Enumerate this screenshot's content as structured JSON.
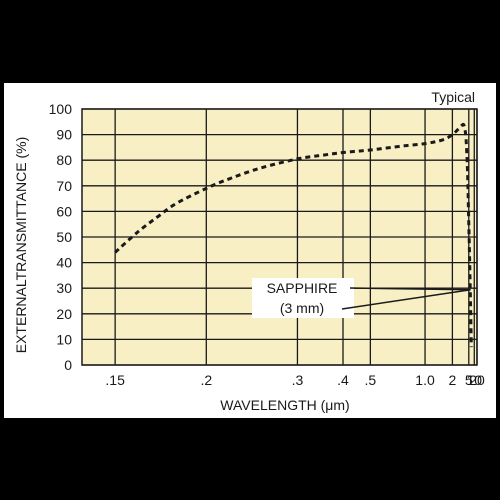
{
  "colors": {
    "page_background": "#000000",
    "panel_background": "#ffffff",
    "plot_background": "#f8efc4",
    "grid_line": "#1a1a1a",
    "curve": "#1a1a1a"
  },
  "chart_data": {
    "type": "line",
    "title": "",
    "corner_label": "Typical",
    "xlabel": "WAVELENGTH (μm)",
    "ylabel": "EXTERNALTRANSMITTANCE (%)",
    "x_scale": "reciprocal",
    "xlim": [
      0.1375,
      20
    ],
    "ylim": [
      0,
      100
    ],
    "grid": true,
    "x_ticks": [
      {
        "value": 0.15,
        "label": ".15"
      },
      {
        "value": 0.2,
        "label": ".2"
      },
      {
        "value": 0.3,
        "label": ".3"
      },
      {
        "value": 0.4,
        "label": ".4"
      },
      {
        "value": 0.5,
        "label": ".5"
      },
      {
        "value": 1.0,
        "label": "1.0"
      },
      {
        "value": 2,
        "label": "2"
      },
      {
        "value": 5,
        "label": "5"
      },
      {
        "value": 10,
        "label": "10"
      },
      {
        "value": 20,
        "label": "20"
      }
    ],
    "y_ticks": [
      {
        "value": 0,
        "label": "0"
      },
      {
        "value": 10,
        "label": "10"
      },
      {
        "value": 20,
        "label": "20"
      },
      {
        "value": 30,
        "label": "30"
      },
      {
        "value": 40,
        "label": "40"
      },
      {
        "value": 50,
        "label": "50"
      },
      {
        "value": 60,
        "label": "60"
      },
      {
        "value": 70,
        "label": "70"
      },
      {
        "value": 80,
        "label": "80"
      },
      {
        "value": 90,
        "label": "90"
      },
      {
        "value": 100,
        "label": "100"
      }
    ],
    "series": [
      {
        "name": "SAPPHIRE (3 mm)",
        "style": "dashed",
        "x": [
          0.15,
          0.16,
          0.17,
          0.18,
          0.2,
          0.22,
          0.25,
          0.3,
          0.35,
          0.4,
          0.5,
          0.7,
          1.0,
          1.5,
          2.0,
          2.5,
          3.0,
          3.5,
          4.0,
          4.5,
          5.0,
          5.5,
          6.0,
          6.5
        ],
        "y": [
          44,
          52,
          58,
          63,
          69,
          73,
          77,
          80.5,
          82,
          83,
          84,
          85.5,
          86.5,
          88,
          90,
          92,
          93.5,
          93.5,
          88,
          75,
          55,
          38,
          22,
          7
        ]
      }
    ],
    "annotations": [
      {
        "text_lines": [
          "SAPPHIRE",
          "(3 mm)"
        ],
        "points_to": {
          "x": 6.0,
          "y": 29
        }
      }
    ]
  }
}
